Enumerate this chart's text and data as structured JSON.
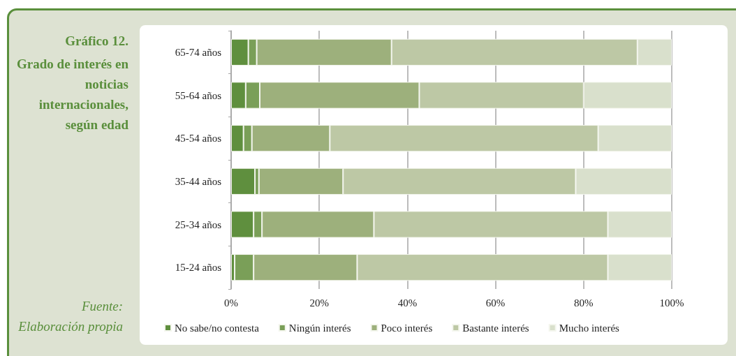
{
  "chart_data": {
    "type": "bar",
    "orientation": "horizontal",
    "stacked": true,
    "title": "Gráfico 12.",
    "subtitle": "Grado de interés en noticias internacionales, según edad",
    "annotations": [
      "Fuente: Elaboración propia"
    ],
    "categories": [
      "65-74 años",
      "55-64 años",
      "45-54 años",
      "35-44 años",
      "25-34 años",
      "15-24 años"
    ],
    "series": [
      {
        "name": "No sabe/no contesta",
        "color": "#5f8f3e",
        "values": [
          3.9,
          3.3,
          2.8,
          5.4,
          5.1,
          0.8
        ]
      },
      {
        "name": "Ningún interés",
        "color": "#7a9f58",
        "values": [
          1.9,
          3.2,
          1.9,
          0.9,
          1.9,
          4.3
        ]
      },
      {
        "name": "Poco interés",
        "color": "#9db07c",
        "values": [
          30.6,
          36.2,
          17.7,
          19.1,
          25.4,
          23.5
        ]
      },
      {
        "name": "Bastante interés",
        "color": "#bdc8a5",
        "values": [
          55.8,
          37.3,
          60.9,
          52.8,
          53.1,
          56.9
        ]
      },
      {
        "name": "Mucho interés",
        "color": "#d9e0cc",
        "values": [
          7.8,
          20.0,
          16.7,
          21.8,
          14.5,
          14.5
        ]
      }
    ],
    "xlim": [
      0,
      100
    ],
    "xticks": [
      {
        "value": 0,
        "label": "0%"
      },
      {
        "value": 20,
        "label": "20%"
      },
      {
        "value": 40,
        "label": "40%"
      },
      {
        "value": 60,
        "label": "60%"
      },
      {
        "value": 80,
        "label": "80%"
      },
      {
        "value": 100,
        "label": "100%"
      }
    ],
    "grid": "x",
    "legend": "bottom"
  }
}
